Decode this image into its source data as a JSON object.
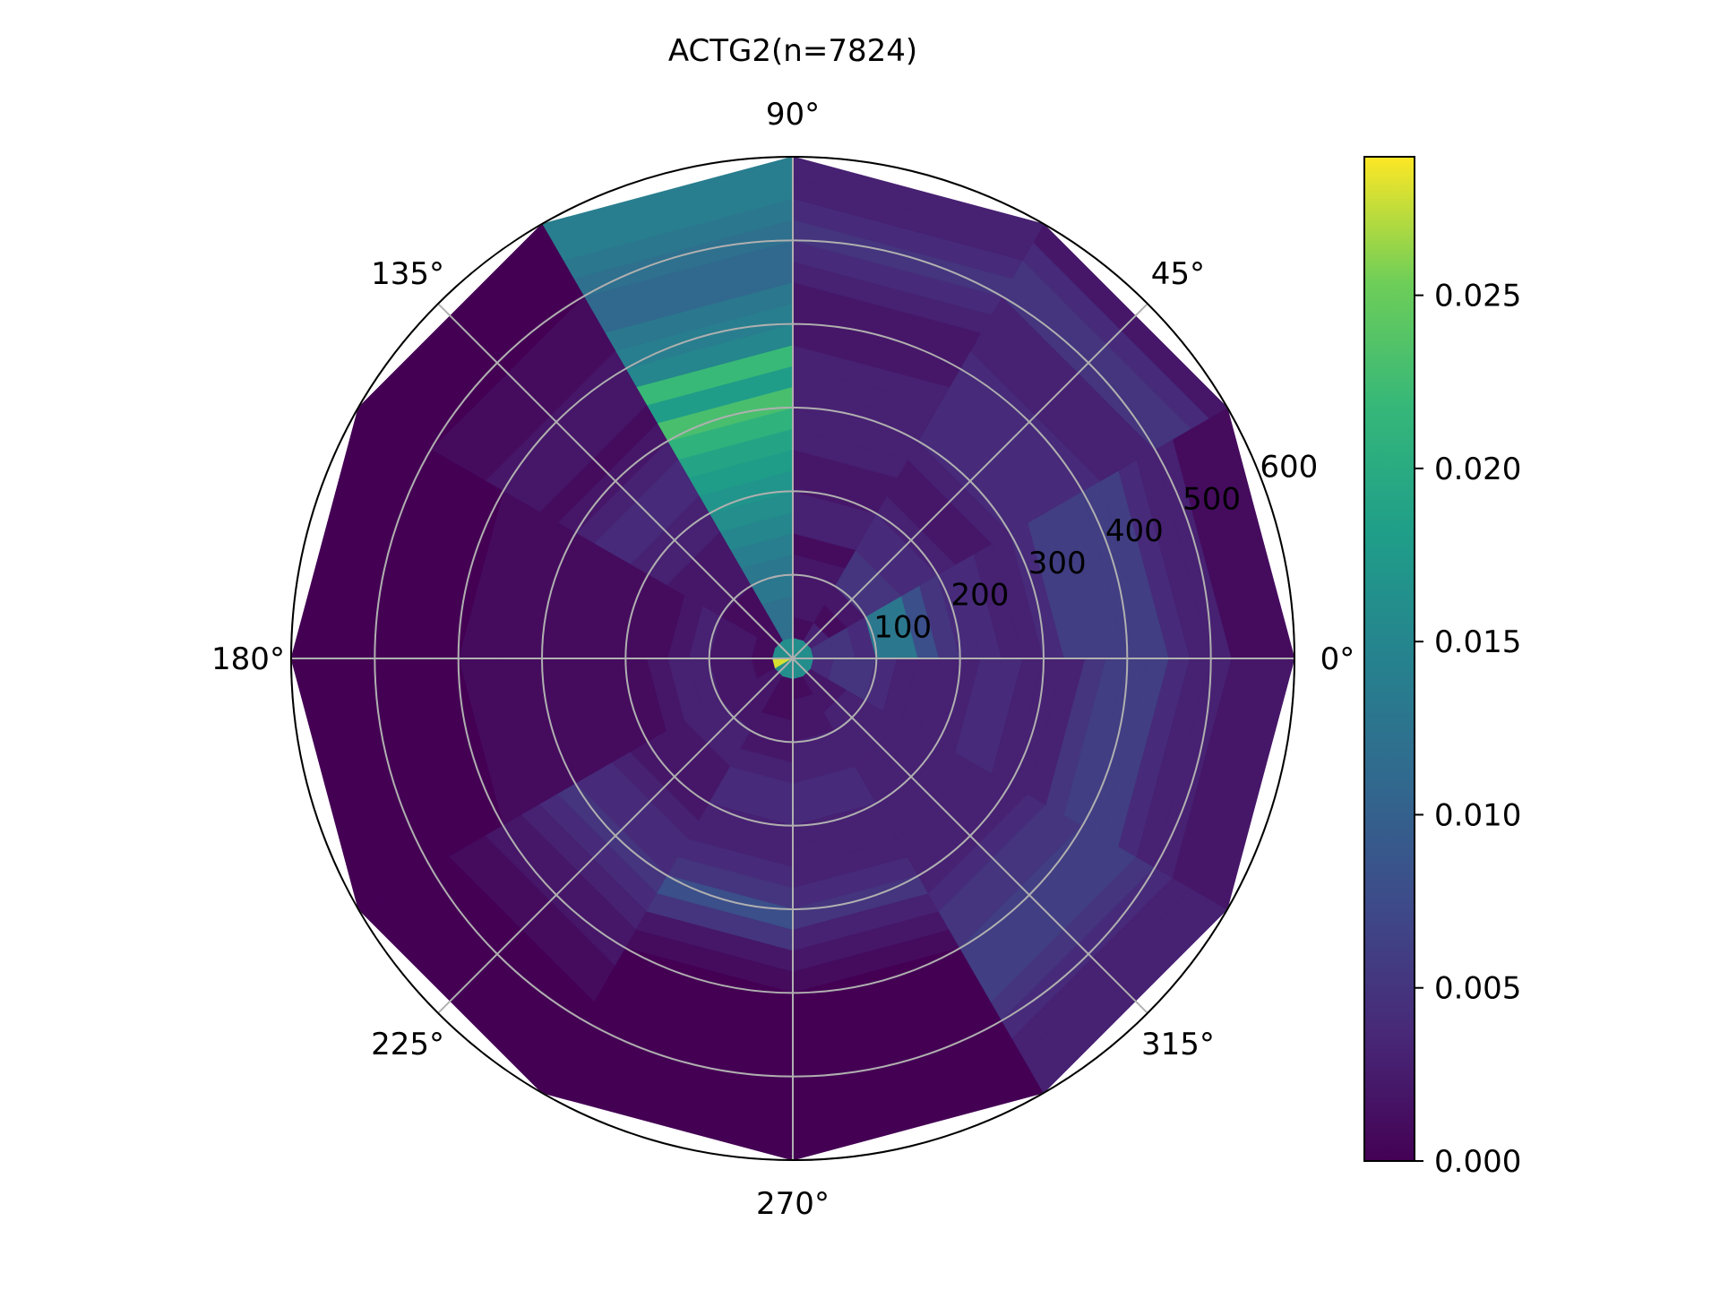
{
  "chart_data": {
    "type": "heatmap",
    "subtype": "polar",
    "title": "ACTG2(n=7824)",
    "angle_ticks": [
      "0°",
      "45°",
      "90°",
      "135°",
      "180°",
      "225°",
      "270°",
      "315°"
    ],
    "radial_ticks": [
      "100",
      "200",
      "300",
      "400",
      "500",
      "600"
    ],
    "radial_tick_values": [
      100,
      200,
      300,
      400,
      500,
      600
    ],
    "rmax": 600,
    "angle_bin_degrees": 30,
    "angle_bin_starts": [
      0,
      30,
      60,
      90,
      120,
      150,
      180,
      210,
      240,
      270,
      300,
      330
    ],
    "radius_bin_edges": [
      0,
      25,
      50,
      75,
      100,
      125,
      150,
      175,
      200,
      225,
      250,
      275,
      300,
      325,
      350,
      375,
      400,
      425,
      450,
      475,
      500,
      525,
      550,
      575,
      600
    ],
    "values": [
      [
        0.016,
        0.005,
        0.005,
        0.004,
        0.013,
        0.013,
        0.008,
        0.005,
        0.004,
        0.004,
        0.003,
        0.003,
        0.004,
        0.006,
        0.006,
        0.006,
        0.006,
        0.006,
        0.004,
        0.003,
        0.003,
        0.001,
        0.001,
        0.001
      ],
      [
        0.016,
        0.003,
        0.001,
        0.002,
        0.005,
        0.005,
        0.004,
        0.004,
        0.003,
        0.002,
        0.002,
        0.003,
        0.004,
        0.004,
        0.004,
        0.004,
        0.004,
        0.003,
        0.003,
        0.003,
        0.005,
        0.005,
        0.004,
        0.002
      ],
      [
        0.016,
        0.001,
        0.002,
        0.002,
        0.002,
        0.001,
        0.003,
        0.003,
        0.002,
        0.002,
        0.003,
        0.003,
        0.003,
        0.003,
        0.003,
        0.002,
        0.002,
        0.002,
        0.003,
        0.004,
        0.005,
        0.004,
        0.003,
        0.003
      ],
      [
        0.016,
        0.012,
        0.012,
        0.013,
        0.013,
        0.014,
        0.015,
        0.016,
        0.017,
        0.018,
        0.019,
        0.021,
        0.023,
        0.018,
        0.022,
        0.015,
        0.014,
        0.013,
        0.011,
        0.011,
        0.012,
        0.013,
        0.014,
        0.014
      ],
      [
        0.016,
        0.001,
        0.001,
        0.001,
        0.002,
        0.002,
        0.002,
        0.003,
        0.003,
        0.004,
        0.004,
        0.003,
        0.002,
        0.001,
        0.002,
        0.002,
        0.002,
        0.001,
        0.001,
        0.001,
        0.0,
        0.0,
        0.0,
        0.0
      ],
      [
        0.016,
        0.001,
        0.002,
        0.002,
        0.003,
        0.002,
        0.001,
        0.001,
        0.001,
        0.001,
        0.001,
        0.001,
        0.001,
        0.001,
        0.001,
        0.001,
        0.0,
        0.0,
        0.0,
        0.0,
        0.0,
        0.0,
        0.0,
        0.0
      ],
      [
        0.028,
        0.001,
        0.002,
        0.002,
        0.003,
        0.003,
        0.002,
        0.001,
        0.001,
        0.001,
        0.001,
        0.001,
        0.001,
        0.001,
        0.001,
        0.001,
        0.0,
        0.0,
        0.0,
        0.0,
        0.0,
        0.0,
        0.0,
        0.0
      ],
      [
        0.016,
        0.002,
        0.002,
        0.002,
        0.003,
        0.003,
        0.002,
        0.002,
        0.002,
        0.003,
        0.004,
        0.004,
        0.005,
        0.004,
        0.003,
        0.002,
        0.002,
        0.001,
        0.001,
        0.0,
        0.0,
        0.0,
        0.0,
        0.0
      ],
      [
        0.016,
        0.001,
        0.001,
        0.002,
        0.002,
        0.003,
        0.004,
        0.004,
        0.003,
        0.003,
        0.004,
        0.005,
        0.008,
        0.005,
        0.002,
        0.001,
        0.0,
        0.0,
        0.0,
        0.0,
        0.0,
        0.0,
        0.0,
        0.0
      ],
      [
        0.016,
        0.001,
        0.002,
        0.002,
        0.003,
        0.003,
        0.004,
        0.004,
        0.003,
        0.003,
        0.003,
        0.004,
        0.005,
        0.003,
        0.002,
        0.001,
        0.0,
        0.0,
        0.0,
        0.0,
        0.0,
        0.0,
        0.0,
        0.0
      ],
      [
        0.016,
        0.002,
        0.002,
        0.003,
        0.003,
        0.003,
        0.003,
        0.003,
        0.003,
        0.003,
        0.003,
        0.003,
        0.003,
        0.004,
        0.005,
        0.005,
        0.006,
        0.006,
        0.006,
        0.005,
        0.004,
        0.003,
        0.003,
        0.003
      ],
      [
        0.016,
        0.004,
        0.005,
        0.005,
        0.004,
        0.003,
        0.003,
        0.003,
        0.003,
        0.004,
        0.004,
        0.003,
        0.003,
        0.003,
        0.005,
        0.006,
        0.006,
        0.006,
        0.004,
        0.003,
        0.003,
        0.002,
        0.002,
        0.002
      ]
    ],
    "colormap": "viridis",
    "colorbar": {
      "range": [
        0,
        0.029
      ],
      "ticks": [
        "0.000",
        "0.005",
        "0.010",
        "0.015",
        "0.020",
        "0.025"
      ],
      "tick_values": [
        0,
        0.005,
        0.01,
        0.015,
        0.02,
        0.025
      ]
    },
    "grid": true
  }
}
